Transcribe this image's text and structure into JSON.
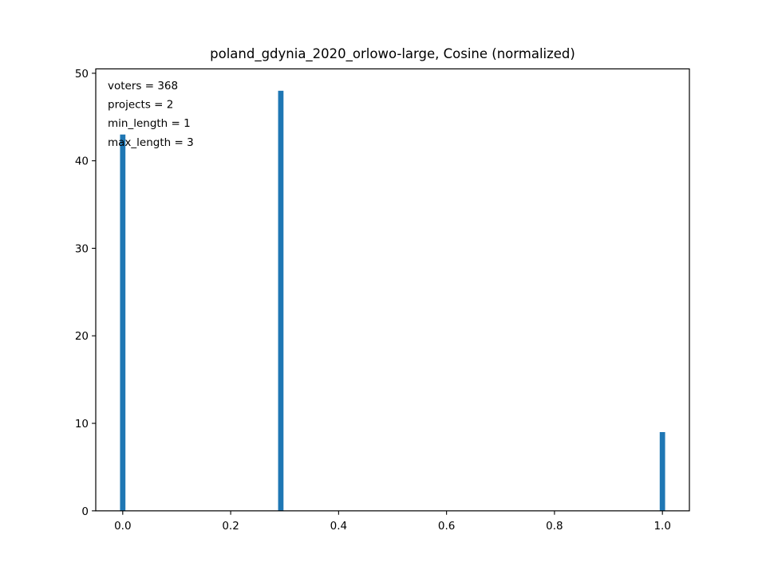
{
  "chart_data": {
    "type": "bar",
    "title": "poland_gdynia_2020_orlowo-large, Cosine (normalized)",
    "xlabel": "",
    "ylabel": "",
    "xlim": [
      -0.05,
      1.05
    ],
    "ylim": [
      0,
      50.5
    ],
    "bar_width": 0.01,
    "x": [
      0.0,
      0.2929,
      1.0
    ],
    "values": [
      43,
      48,
      9
    ],
    "x_ticks": [
      0.0,
      0.2,
      0.4,
      0.6,
      0.8,
      1.0
    ],
    "x_tick_labels": [
      "0.0",
      "0.2",
      "0.4",
      "0.6",
      "0.8",
      "1.0"
    ],
    "y_ticks": [
      0,
      10,
      20,
      30,
      40,
      50
    ],
    "y_tick_labels": [
      "0",
      "10",
      "20",
      "30",
      "40",
      "50"
    ],
    "annotations": [
      "voters = 368",
      "projects = 2",
      "min_length = 1",
      "max_length = 3"
    ],
    "bar_color": "#1f77b4",
    "grid": false,
    "legend": "none"
  }
}
